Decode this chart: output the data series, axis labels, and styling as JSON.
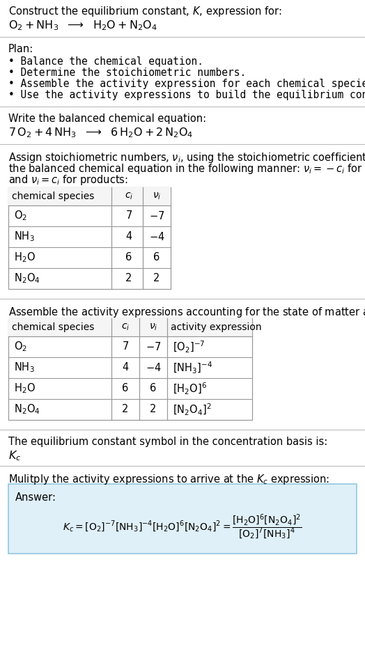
{
  "title_line1": "Construct the equilibrium constant, $K$, expression for:",
  "title_line2_parts": [
    "$\\mathrm{O_2}$",
    " + ",
    "$\\mathrm{NH_3}$",
    "  ⟶  ",
    "$\\mathrm{H_2O}$",
    " + ",
    "$\\mathrm{N_2O_4}$"
  ],
  "plan_header": "Plan:",
  "plan_items": [
    "• Balance the chemical equation.",
    "• Determine the stoichiometric numbers.",
    "• Assemble the activity expression for each chemical species.",
    "• Use the activity expressions to build the equilibrium constant expression."
  ],
  "balanced_header": "Write the balanced chemical equation:",
  "stoich_intro_lines": [
    "Assign stoichiometric numbers, $\\nu_i$, using the stoichiometric coefficients, $c_i$, from",
    "the balanced chemical equation in the following manner: $\\nu_i = -c_i$ for reactants",
    "and $\\nu_i = c_i$ for products:"
  ],
  "table1_headers": [
    "chemical species",
    "$c_i$",
    "$\\nu_i$"
  ],
  "table1_data": [
    [
      "$\\mathrm{O_2}$",
      "7",
      "$-7$"
    ],
    [
      "$\\mathrm{NH_3}$",
      "4",
      "$-4$"
    ],
    [
      "$\\mathrm{H_2O}$",
      "6",
      "6"
    ],
    [
      "$\\mathrm{N_2O_4}$",
      "2",
      "2"
    ]
  ],
  "assemble_intro": "Assemble the activity expressions accounting for the state of matter and $\\nu_i$:",
  "table2_headers": [
    "chemical species",
    "$c_i$",
    "$\\nu_i$",
    "activity expression"
  ],
  "table2_data": [
    [
      "$\\mathrm{O_2}$",
      "7",
      "$-7$",
      "$[\\mathrm{O_2}]^{-7}$"
    ],
    [
      "$\\mathrm{NH_3}$",
      "4",
      "$-4$",
      "$[\\mathrm{NH_3}]^{-4}$"
    ],
    [
      "$\\mathrm{H_2O}$",
      "6",
      "6",
      "$[\\mathrm{H_2O}]^{6}$"
    ],
    [
      "$\\mathrm{N_2O_4}$",
      "2",
      "2",
      "$[\\mathrm{N_2O_4}]^{2}$"
    ]
  ],
  "kc_text": "The equilibrium constant symbol in the concentration basis is:",
  "kc_symbol": "$K_c$",
  "multiply_text": "Mulitply the activity expressions to arrive at the $K_c$ expression:",
  "answer_label": "Answer:",
  "bg_color": "#ffffff",
  "answer_bg": "#dff0f8",
  "answer_border": "#90c8e0",
  "text_color": "#000000",
  "line_color": "#bbbbbb",
  "table_line_color": "#999999",
  "header_bg": "#f5f5f5",
  "font_size": 10.5,
  "mono_font": "DejaVu Sans Mono"
}
